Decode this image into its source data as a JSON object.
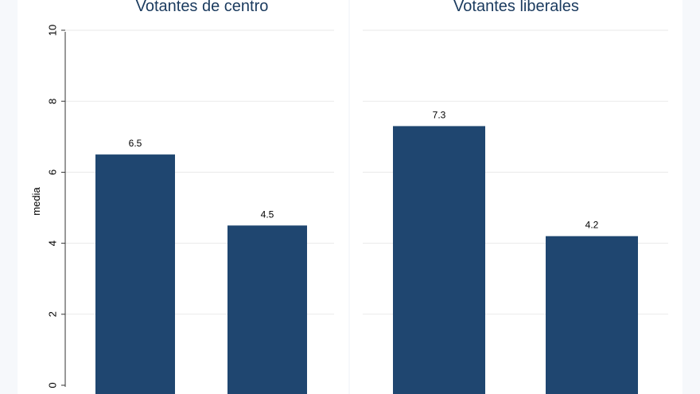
{
  "chart_data": [
    {
      "type": "bar",
      "title": "Votantes de centro",
      "ylabel": "media",
      "ylim": [
        0,
        10
      ],
      "yticks": [
        0,
        2,
        4,
        6,
        8,
        10
      ],
      "grid": true,
      "categories": [
        "",
        ""
      ],
      "values": [
        6.5,
        4.5
      ],
      "data_labels": [
        "6.5",
        "4.5"
      ],
      "bar_color": "#1f4670"
    },
    {
      "type": "bar",
      "title": "Votantes liberales",
      "ylabel": "",
      "ylim": [
        0,
        10
      ],
      "grid": true,
      "categories": [
        "",
        ""
      ],
      "values": [
        7.3,
        4.2
      ],
      "data_labels": [
        "7.3",
        "4.2"
      ],
      "bar_color": "#1f4670"
    }
  ],
  "colors": {
    "background": "#f6f8fb",
    "panel": "#ffffff",
    "grid": "#eaeaea",
    "bar": "#1f4670"
  }
}
